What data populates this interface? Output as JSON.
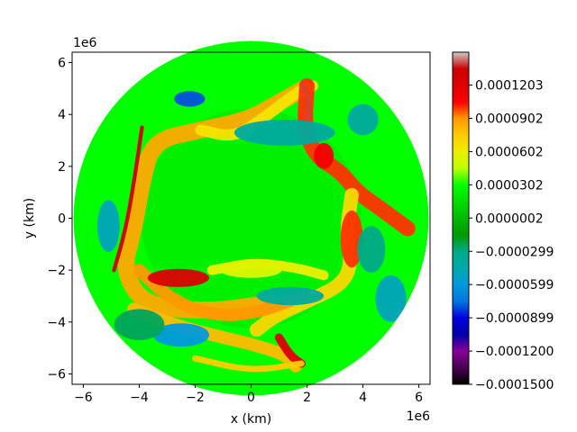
{
  "chart_data": {
    "type": "heatmap",
    "title": "",
    "xlabel": "x (km)",
    "ylabel": "y (km)",
    "x_offset_label": "1e6",
    "y_offset_label": "1e6",
    "xlim": [
      -6.4,
      6.4
    ],
    "ylim": [
      -6.4,
      6.4
    ],
    "x_ticks": [
      -6,
      -4,
      -2,
      0,
      2,
      4,
      6
    ],
    "y_ticks": [
      -6,
      -4,
      -2,
      0,
      2,
      4,
      6
    ],
    "x_tick_labels": [
      "−6",
      "−4",
      "−2",
      "0",
      "2",
      "4",
      "6"
    ],
    "y_tick_labels": [
      "−6",
      "−4",
      "−2",
      "0",
      "2",
      "4",
      "6"
    ],
    "domain_radius": 6.35,
    "grid": false,
    "colorbar": {
      "colormap": "nipy_spectral",
      "vmin": -0.00015,
      "vmax": 0.00015,
      "ticks": [
        0.0001203,
        9.02e-05,
        6.02e-05,
        3.02e-05,
        2e-07,
        -2.99e-05,
        -5.99e-05,
        -8.99e-05,
        -0.00012,
        -0.00015
      ],
      "tick_labels": [
        "0.0001203",
        "0.0000902",
        "0.0000602",
        "0.0000302",
        "0.0000002",
        "−0.0000299",
        "−0.0000599",
        "−0.0000899",
        "−0.0001200",
        "−0.0001500"
      ],
      "placement": "right"
    },
    "background_value": 3.02e-05,
    "features": [
      {
        "kind": "filament",
        "value": 8.5e-05,
        "points": [
          [
            1.9,
            5.0
          ],
          [
            0.9,
            4.4
          ],
          [
            -0.1,
            3.8
          ],
          [
            -1.8,
            3.4
          ],
          [
            -3.5,
            3.0
          ],
          [
            -3.9,
            1.4
          ],
          [
            -4.2,
            -0.5
          ],
          [
            -4.6,
            -2.0
          ],
          [
            -3.8,
            -3.4
          ],
          [
            -1.5,
            -3.6
          ],
          [
            0.5,
            -3.3
          ],
          [
            1.2,
            -3.4
          ]
        ],
        "width": 0.6
      },
      {
        "kind": "filament",
        "value": 0.00013,
        "points": [
          [
            -3.9,
            3.5
          ],
          [
            -4.2,
            1.3
          ],
          [
            -4.5,
            -0.5
          ],
          [
            -4.9,
            -2.0
          ]
        ],
        "width": 0.14
      },
      {
        "kind": "filament",
        "value": 6.5e-05,
        "points": [
          [
            -1.8,
            3.4
          ],
          [
            -0.6,
            3.1
          ],
          [
            0.5,
            3.9
          ],
          [
            1.7,
            4.9
          ],
          [
            2.2,
            5.1
          ]
        ],
        "width": 0.4
      },
      {
        "kind": "filament",
        "value": 0.0001,
        "points": [
          [
            2.0,
            5.1
          ],
          [
            1.9,
            3.5
          ],
          [
            2.3,
            2.4
          ],
          [
            3.2,
            1.8
          ],
          [
            3.8,
            1.0
          ],
          [
            4.6,
            0.4
          ],
          [
            5.6,
            -0.4
          ]
        ],
        "width": 0.55
      },
      {
        "kind": "filament",
        "value": 0.00014,
        "points": [
          [
            1.8,
            5.2
          ],
          [
            2.1,
            4.6
          ],
          [
            2.0,
            3.6
          ]
        ],
        "width": 0.12
      },
      {
        "kind": "filament",
        "value": 7e-05,
        "points": [
          [
            3.6,
            0.9
          ],
          [
            3.4,
            -0.6
          ],
          [
            3.6,
            -1.8
          ],
          [
            3.2,
            -2.6
          ],
          [
            2.0,
            -3.2
          ],
          [
            0.8,
            -3.8
          ],
          [
            0.2,
            -4.3
          ]
        ],
        "width": 0.5
      },
      {
        "kind": "filament",
        "value": 9e-05,
        "points": [
          [
            -4.0,
            -2.0
          ],
          [
            -2.8,
            -3.2
          ],
          [
            -1.2,
            -3.8
          ],
          [
            0.4,
            -3.6
          ],
          [
            1.8,
            -3.0
          ]
        ],
        "width": 0.45
      },
      {
        "kind": "filament",
        "value": 6e-05,
        "points": [
          [
            -1.4,
            -2.0
          ],
          [
            0.1,
            -1.7
          ],
          [
            1.6,
            -1.9
          ],
          [
            2.6,
            -2.2
          ]
        ],
        "width": 0.35
      },
      {
        "kind": "filament",
        "value": 8e-05,
        "points": [
          [
            -4.2,
            -3.5
          ],
          [
            -2.8,
            -4.1
          ],
          [
            -1.0,
            -4.6
          ],
          [
            0.2,
            -4.9
          ],
          [
            1.3,
            -5.3
          ],
          [
            1.6,
            -5.7
          ]
        ],
        "width": 0.45
      },
      {
        "kind": "filament",
        "value": 0.00012,
        "points": [
          [
            1.0,
            -4.6
          ],
          [
            1.4,
            -5.3
          ],
          [
            1.8,
            -5.6
          ]
        ],
        "width": 0.3
      },
      {
        "kind": "filament",
        "value": 7.5e-05,
        "points": [
          [
            -2.0,
            -5.4
          ],
          [
            0.0,
            -5.9
          ],
          [
            1.8,
            -5.6
          ]
        ],
        "width": 0.22
      },
      {
        "kind": "blob",
        "value": 0.0001,
        "center": [
          3.6,
          -0.8
        ],
        "rx": 0.4,
        "ry": 1.1
      },
      {
        "kind": "blob",
        "value": 0.00011,
        "center": [
          2.6,
          2.4
        ],
        "rx": 0.35,
        "ry": 0.5
      },
      {
        "kind": "blob",
        "value": 5.5e-05,
        "center": [
          0.0,
          -2.0
        ],
        "rx": 1.1,
        "ry": 0.3
      },
      {
        "kind": "blob",
        "value": 0.00012,
        "center": [
          -2.6,
          -2.3
        ],
        "rx": 1.1,
        "ry": 0.35
      },
      {
        "kind": "blob",
        "value": -8e-05,
        "center": [
          -2.2,
          4.6
        ],
        "rx": 0.55,
        "ry": 0.3
      },
      {
        "kind": "blob",
        "value": -4e-05,
        "center": [
          4.0,
          3.8
        ],
        "rx": 0.55,
        "ry": 0.6
      },
      {
        "kind": "blob",
        "value": -5e-05,
        "center": [
          -5.1,
          -0.3
        ],
        "rx": 0.4,
        "ry": 1.0
      },
      {
        "kind": "blob",
        "value": -5e-05,
        "center": [
          5.0,
          -3.1
        ],
        "rx": 0.55,
        "ry": 0.9
      },
      {
        "kind": "blob",
        "value": -3e-05,
        "center": [
          4.3,
          -1.2
        ],
        "rx": 0.5,
        "ry": 0.9
      },
      {
        "kind": "blob",
        "value": -4e-05,
        "center": [
          1.4,
          -3.0
        ],
        "rx": 1.2,
        "ry": 0.35
      },
      {
        "kind": "blob",
        "value": -6e-05,
        "center": [
          -2.5,
          -4.5
        ],
        "rx": 1.0,
        "ry": 0.45
      },
      {
        "kind": "blob",
        "value": -4e-05,
        "center": [
          1.2,
          3.3
        ],
        "rx": 1.8,
        "ry": 0.5
      },
      {
        "kind": "blob",
        "value": -2.5e-05,
        "center": [
          -4.0,
          -4.1
        ],
        "rx": 0.9,
        "ry": 0.6
      }
    ]
  }
}
